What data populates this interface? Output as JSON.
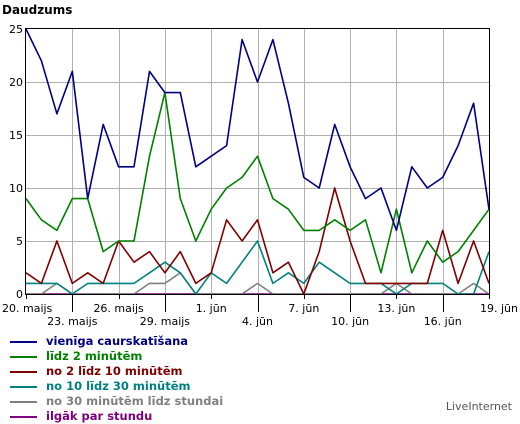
{
  "chart_data": {
    "type": "line",
    "ylabel": "Daudzums",
    "ylim": [
      0,
      25
    ],
    "yticks": [
      0,
      5,
      10,
      15,
      20,
      25
    ],
    "x_count": 31,
    "x_tick_labels": [
      {
        "index": 0,
        "text": "20. maijs"
      },
      {
        "index": 3,
        "text": "23. maijs"
      },
      {
        "index": 6,
        "text": "26. maijs"
      },
      {
        "index": 9,
        "text": "29. maijs"
      },
      {
        "index": 12,
        "text": "1. jūn"
      },
      {
        "index": 15,
        "text": "4. jūn"
      },
      {
        "index": 18,
        "text": "7. jūn"
      },
      {
        "index": 21,
        "text": "10. jūn"
      },
      {
        "index": 24,
        "text": "13. jūn"
      },
      {
        "index": 27,
        "text": "16. jūn"
      },
      {
        "index": 30,
        "text": "19. jūn"
      }
    ],
    "grid": true,
    "legend_position": "bottom",
    "series": [
      {
        "name": "vienīga caurskatīšana",
        "color": "#000080",
        "values": [
          25,
          22,
          17,
          21,
          9,
          16,
          12,
          12,
          21,
          19,
          19,
          12,
          13,
          14,
          24,
          20,
          24,
          18,
          11,
          10,
          16,
          12,
          9,
          10,
          6,
          12,
          10,
          11,
          14,
          18,
          8
        ]
      },
      {
        "name": "līdz 2 minūtēm",
        "color": "#008000",
        "values": [
          9,
          7,
          6,
          9,
          9,
          4,
          5,
          5,
          13,
          19,
          9,
          5,
          8,
          10,
          11,
          13,
          9,
          8,
          6,
          6,
          7,
          6,
          7,
          2,
          8,
          2,
          5,
          3,
          4,
          6,
          8
        ]
      },
      {
        "name": "no 2 līdz 10 minūtēm",
        "color": "#800000",
        "values": [
          2,
          1,
          5,
          1,
          2,
          1,
          5,
          3,
          4,
          2,
          4,
          1,
          2,
          7,
          5,
          7,
          2,
          3,
          0,
          4,
          10,
          5,
          1,
          1,
          1,
          1,
          1,
          6,
          1,
          5,
          1
        ]
      },
      {
        "name": "no 10 līdz 30 minūtēm",
        "color": "#008080",
        "values": [
          1,
          1,
          1,
          0,
          1,
          1,
          1,
          1,
          2,
          3,
          2,
          0,
          2,
          1,
          3,
          5,
          1,
          2,
          1,
          3,
          2,
          1,
          1,
          1,
          0,
          1,
          1,
          1,
          0,
          0,
          4
        ]
      },
      {
        "name": "no 30 minūtēm līdz stundai",
        "color": "#808080",
        "values": [
          0,
          0,
          1,
          0,
          0,
          0,
          0,
          0,
          1,
          1,
          2,
          0,
          0,
          0,
          0,
          1,
          0,
          0,
          0,
          0,
          0,
          0,
          0,
          0,
          1,
          0,
          0,
          0,
          0,
          1,
          0
        ]
      },
      {
        "name": "ilgāk par stundu",
        "color": "#800080",
        "values": [
          0,
          0,
          0,
          0,
          0,
          0,
          0,
          0,
          0,
          0,
          0,
          0,
          0,
          0,
          0,
          0,
          0,
          0,
          0,
          0,
          0,
          0,
          0,
          0,
          0,
          0,
          0,
          0,
          0,
          0,
          0
        ]
      }
    ]
  },
  "brand": "LiveInternet"
}
